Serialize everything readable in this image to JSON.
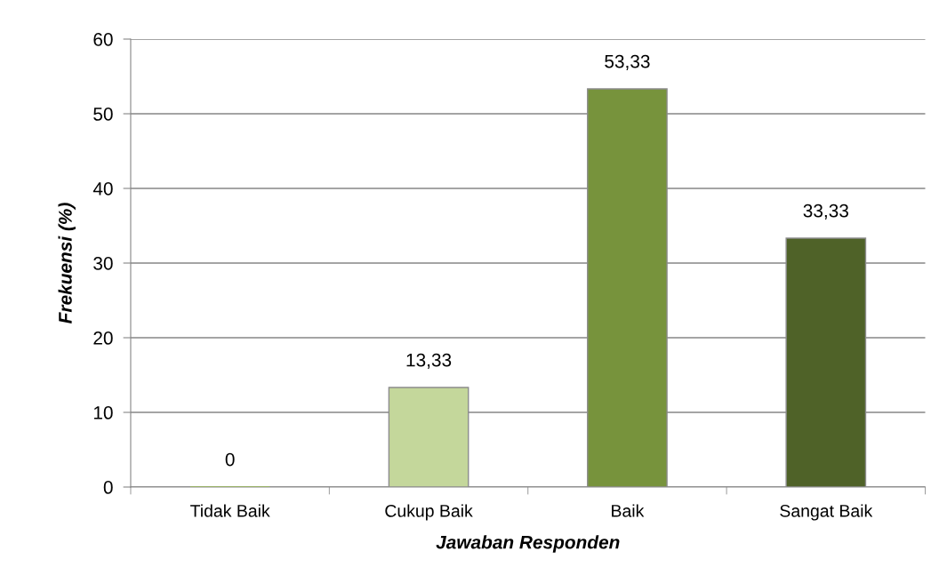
{
  "chart_data": {
    "type": "bar",
    "xlabel": "Jawaban Responden",
    "ylabel": "Frekuensi (%)",
    "categories": [
      "Tidak Baik",
      "Cukup Baik",
      "Baik",
      "Sangat Baik"
    ],
    "values": [
      0,
      13.33,
      53.33,
      33.33
    ],
    "colors": [
      "#9bbb59",
      "#c4d79b",
      "#77933c",
      "#4f6228"
    ],
    "value_labels": [
      "0",
      "13,33",
      "53,33",
      "33,33"
    ],
    "ylim": [
      0,
      60
    ],
    "yticks": [
      0,
      10,
      20,
      30,
      40,
      50,
      60
    ],
    "grid": "y",
    "legend": false
  }
}
